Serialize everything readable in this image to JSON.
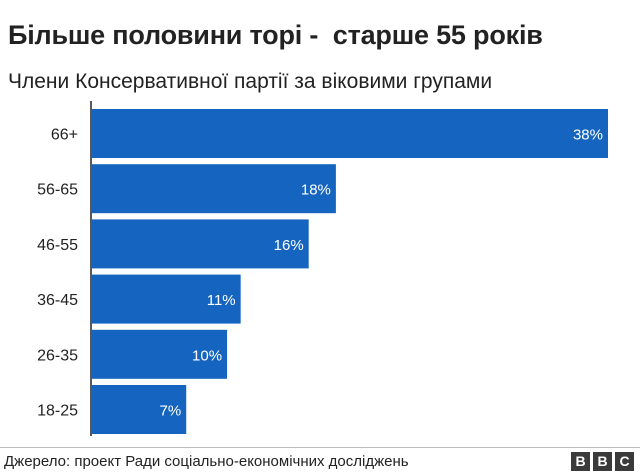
{
  "title": "Більше половини торі -  старше 55 років",
  "subtitle": "Члени Консервативної партії за віковими групами",
  "source": "Джерело: проект Ради соціально-економічних досліджень",
  "logo": [
    "B",
    "B",
    "C"
  ],
  "colors": {
    "bar": "#1565c0",
    "bar_label": "#ffffff",
    "axis": "#222222"
  },
  "chart_data": {
    "type": "bar",
    "orientation": "horizontal",
    "categories": [
      "66+",
      "56-65",
      "46-55",
      "36-45",
      "26-35",
      "18-25"
    ],
    "values": [
      38,
      18,
      16,
      11,
      10,
      7
    ],
    "value_labels": [
      "38%",
      "18%",
      "16%",
      "11%",
      "10%",
      "7%"
    ],
    "unit": "%",
    "xlim": [
      0,
      38
    ],
    "grid": false,
    "legend": "none"
  }
}
